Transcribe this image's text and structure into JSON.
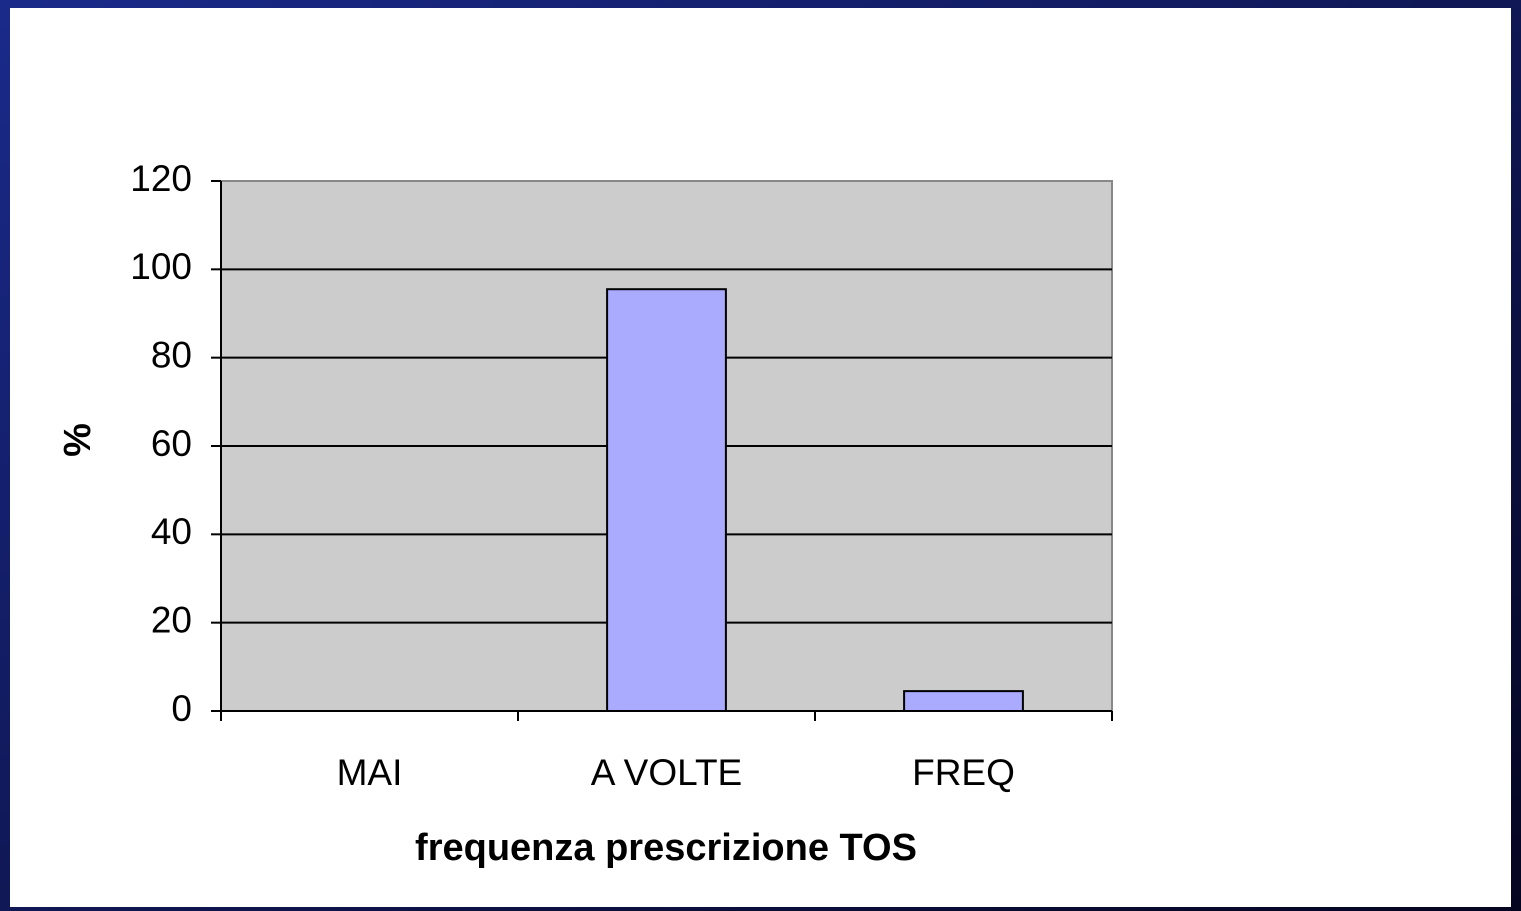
{
  "chart_data": {
    "type": "bar",
    "categories": [
      "MAI",
      "A VOLTE",
      "FREQ"
    ],
    "values": [
      0,
      95.5,
      4.5
    ],
    "color": "#aaaaff",
    "ylim": [
      0,
      120
    ],
    "yticks": [
      0,
      20,
      40,
      60,
      80,
      100,
      120
    ],
    "xlabel": "frequenza prescrizione TOS",
    "ylabel": "%",
    "grid": true
  }
}
